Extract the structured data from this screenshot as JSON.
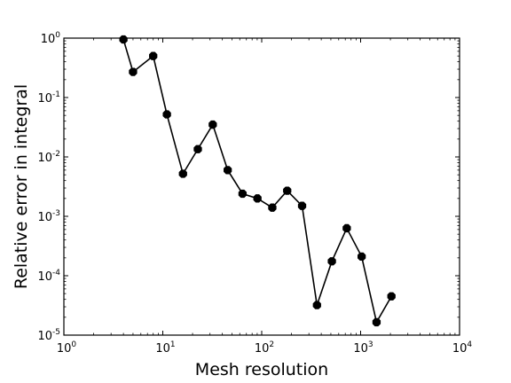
{
  "chart_data": {
    "type": "line",
    "title": "",
    "xlabel": "Mesh resolution",
    "ylabel": "Relative error in integral",
    "xscale": "log",
    "yscale": "log",
    "xlim": [
      1,
      10000
    ],
    "ylim": [
      1e-05,
      1
    ],
    "grid": false,
    "legend": "none",
    "x_ticks": [
      {
        "value": 1,
        "base": "10",
        "exp": "0"
      },
      {
        "value": 10,
        "base": "10",
        "exp": "1"
      },
      {
        "value": 100,
        "base": "10",
        "exp": "2"
      },
      {
        "value": 1000,
        "base": "10",
        "exp": "3"
      },
      {
        "value": 10000,
        "base": "10",
        "exp": "4"
      }
    ],
    "y_ticks": [
      {
        "value": 1,
        "base": "10",
        "exp": "0"
      },
      {
        "value": 0.1,
        "base": "10",
        "exp": "-1"
      },
      {
        "value": 0.01,
        "base": "10",
        "exp": "-2"
      },
      {
        "value": 0.001,
        "base": "10",
        "exp": "-3"
      },
      {
        "value": 0.0001,
        "base": "10",
        "exp": "-4"
      },
      {
        "value": 1e-05,
        "base": "10",
        "exp": "-5"
      }
    ],
    "series": [
      {
        "color": "#000000",
        "marker": "octagon",
        "points": [
          {
            "x": 4,
            "y": 0.95
          },
          {
            "x": 5,
            "y": 0.27
          },
          {
            "x": 8,
            "y": 0.5
          },
          {
            "x": 11,
            "y": 0.052
          },
          {
            "x": 16,
            "y": 0.0052
          },
          {
            "x": 22.6,
            "y": 0.0135
          },
          {
            "x": 32,
            "y": 0.035
          },
          {
            "x": 45.3,
            "y": 0.006
          },
          {
            "x": 64,
            "y": 0.0024
          },
          {
            "x": 90.5,
            "y": 0.002
          },
          {
            "x": 128,
            "y": 0.0014
          },
          {
            "x": 181,
            "y": 0.0027
          },
          {
            "x": 256,
            "y": 0.0015
          },
          {
            "x": 362,
            "y": 3.2e-05
          },
          {
            "x": 512,
            "y": 0.000175
          },
          {
            "x": 724,
            "y": 0.00063
          },
          {
            "x": 1024,
            "y": 0.00021
          },
          {
            "x": 1448,
            "y": 1.65e-05
          },
          {
            "x": 2048,
            "y": 4.5e-05
          }
        ]
      }
    ]
  }
}
